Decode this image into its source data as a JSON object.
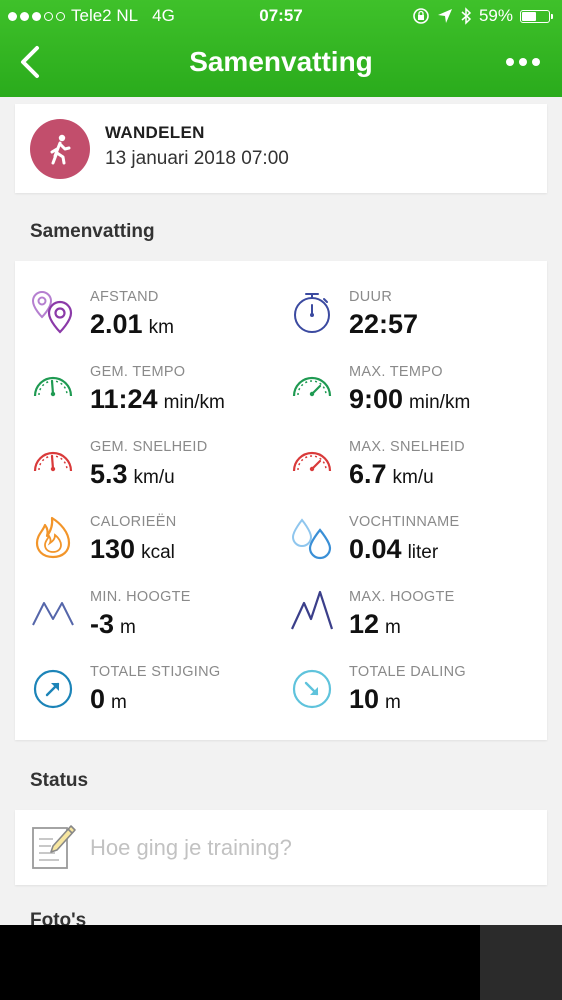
{
  "status_bar": {
    "carrier": "Tele2 NL",
    "network": "4G",
    "time": "07:57",
    "battery_percent": "59%",
    "battery_level": 0.59,
    "signal_dots_filled": 3,
    "signal_dots_total": 5
  },
  "nav": {
    "title": "Samenvatting",
    "back_icon": "chevron-left-icon",
    "more_icon": "more-dots-icon"
  },
  "activity": {
    "name": "WANDELEN",
    "date": "13 januari 2018 07:00",
    "icon": "walking-icon",
    "icon_color": "#c24e6c"
  },
  "summary": {
    "title": "Samenvatting",
    "stats": [
      {
        "label": "AFSTAND",
        "value": "2.01",
        "unit": "km",
        "icon": "location-pins-icon",
        "color": "#8b3aa8"
      },
      {
        "label": "DUUR",
        "value": "22:57",
        "unit": "",
        "icon": "stopwatch-icon",
        "color": "#3b4aa0"
      },
      {
        "label": "GEM. TEMPO",
        "value": "11:24",
        "unit": "min/km",
        "icon": "gauge-icon",
        "color": "#1f9a52"
      },
      {
        "label": "MAX. TEMPO",
        "value": "9:00",
        "unit": "min/km",
        "icon": "gauge-icon",
        "color": "#1f9a52"
      },
      {
        "label": "GEM. SNELHEID",
        "value": "5.3",
        "unit": "km/u",
        "icon": "gauge-icon",
        "color": "#d93a3a"
      },
      {
        "label": "MAX. SNELHEID",
        "value": "6.7",
        "unit": "km/u",
        "icon": "gauge-icon",
        "color": "#d93a3a"
      },
      {
        "label": "CALORIEËN",
        "value": "130",
        "unit": "kcal",
        "icon": "flame-icon",
        "color": "#f2952a"
      },
      {
        "label": "VOCHTINNAME",
        "value": "0.04",
        "unit": "liter",
        "icon": "water-drops-icon",
        "color": "#3a8fd6"
      },
      {
        "label": "MIN. HOOGTE",
        "value": "-3",
        "unit": "m",
        "icon": "mountains-low-icon",
        "color": "#5566aa"
      },
      {
        "label": "MAX. HOOGTE",
        "value": "12",
        "unit": "m",
        "icon": "mountains-high-icon",
        "color": "#3b3f8a"
      },
      {
        "label": "TOTALE STIJGING",
        "value": "0",
        "unit": "m",
        "icon": "arrow-up-right-circle-icon",
        "color": "#1c84b8"
      },
      {
        "label": "TOTALE DALING",
        "value": "10",
        "unit": "m",
        "icon": "arrow-down-right-circle-icon",
        "color": "#5fc3dc"
      }
    ]
  },
  "status_section": {
    "title": "Status",
    "placeholder": "Hoe ging je training?",
    "icon": "note-pencil-icon"
  },
  "photos_section": {
    "title": "Foto's"
  }
}
